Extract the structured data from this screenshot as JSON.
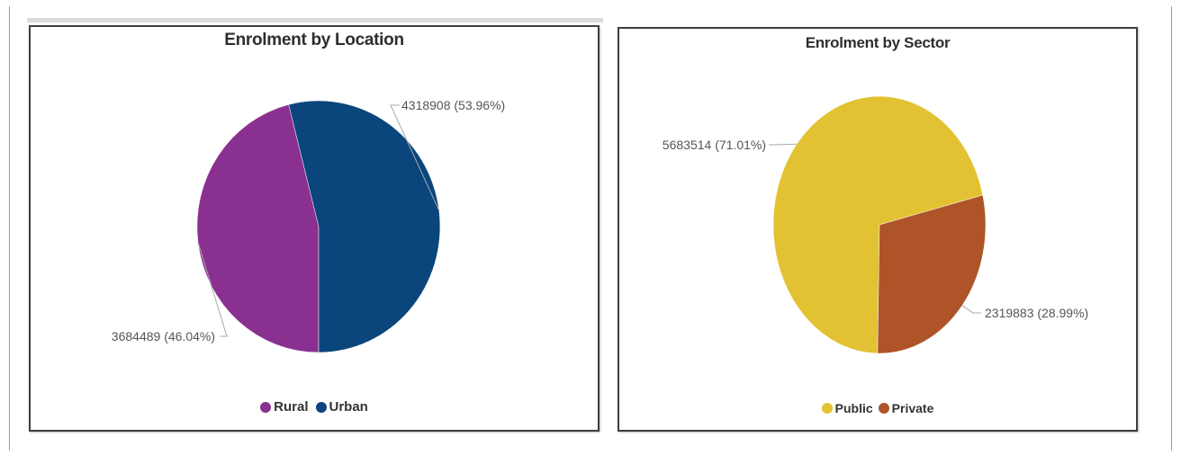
{
  "chart_data": [
    {
      "type": "pie",
      "title": "Enrolment by Location",
      "categories": [
        "Rural",
        "Urban"
      ],
      "values": [
        3684489,
        4318908
      ],
      "percent": [
        46.04,
        53.96
      ],
      "data_labels": [
        "3684489 (46.04%)",
        "4318908 (53.96%)"
      ],
      "colors": [
        "#8a3090",
        "#0a467c"
      ],
      "legend": "bottom"
    },
    {
      "type": "pie",
      "title": "Enrolment by Sector",
      "categories": [
        "Public",
        "Private"
      ],
      "values": [
        5683514,
        2319883
      ],
      "percent": [
        71.01,
        28.99
      ],
      "data_labels": [
        "5683514 (71.01%)",
        "2319883 (28.99%)"
      ],
      "colors": [
        "#e2c232",
        "#ae5428"
      ],
      "legend": "bottom"
    }
  ]
}
